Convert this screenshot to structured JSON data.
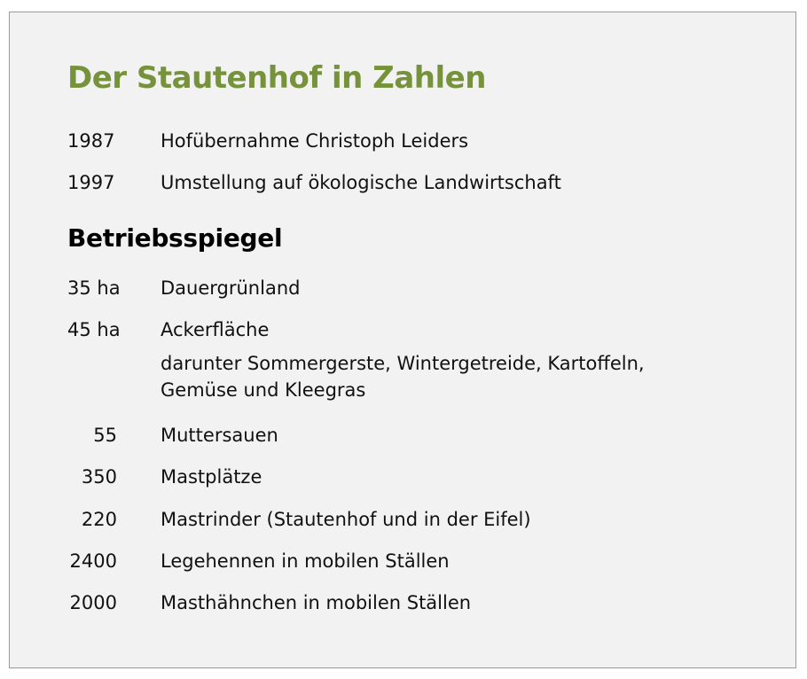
{
  "title": "Der Stautenhof in Zahlen",
  "history": [
    {
      "year": "1987",
      "text": "Hofübernahme Christoph Leiders"
    },
    {
      "year": "1997",
      "text": "Umstellung auf ökologische Landwirtschaft"
    }
  ],
  "section_title": "Betriebsspiegel",
  "land": [
    {
      "amount": "35 ha",
      "text": "Dauergrünland"
    },
    {
      "amount": "45 ha",
      "text": "Ackerfläche",
      "note": "darunter Sommergerste, Wintergetreide, Kartoffeln,\nGemüse und Kleegras"
    }
  ],
  "animals": [
    {
      "count": "55",
      "text": "Muttersauen"
    },
    {
      "count": "350",
      "text": "Mastplätze"
    },
    {
      "count": "220",
      "text": "Mastrinder (Stautenhof und in der Eifel)"
    },
    {
      "count": "2400",
      "text": "Legehennen in mobilen Ställen"
    },
    {
      "count": "2000",
      "text": "Masthähnchen in mobilen Ställen"
    }
  ],
  "colors": {
    "title": "#76933c",
    "background": "#f2f2f2",
    "border": "#9a9a9a"
  }
}
